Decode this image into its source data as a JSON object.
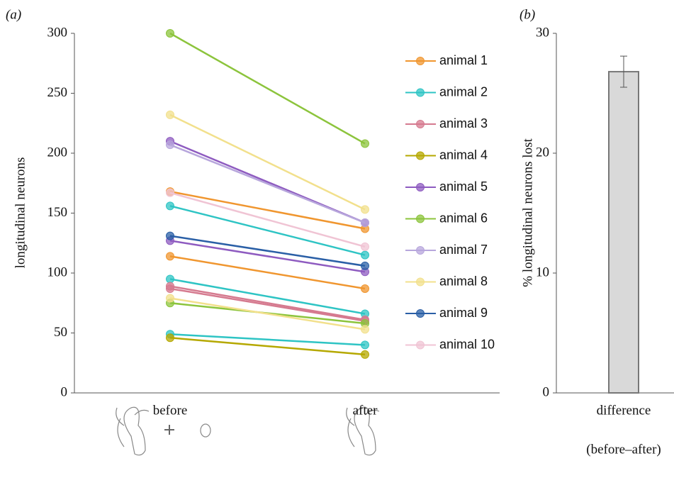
{
  "chart_data": [
    {
      "type": "line",
      "panel_label": "(a)",
      "ylabel": "longitudinal neurons",
      "categories": [
        "before",
        "after"
      ],
      "ylim": [
        0,
        300
      ],
      "yticks": [
        0,
        50,
        100,
        150,
        200,
        250,
        300
      ],
      "series": [
        {
          "name": "animal 1",
          "color": "#f0962f",
          "lines": [
            {
              "values": [
                168,
                137
              ]
            },
            {
              "values": [
                114,
                87
              ]
            }
          ]
        },
        {
          "name": "animal 2",
          "color": "#2ec4c4",
          "lines": [
            {
              "values": [
                156,
                115
              ]
            },
            {
              "values": [
                95,
                66
              ]
            },
            {
              "values": [
                49,
                40
              ]
            }
          ]
        },
        {
          "name": "animal 3",
          "color": "#d57a8f",
          "lines": [
            {
              "values": [
                89,
                61
              ]
            },
            {
              "values": [
                87,
                60
              ]
            }
          ]
        },
        {
          "name": "animal 4",
          "color": "#b5a800",
          "lines": [
            {
              "values": [
                46,
                32
              ]
            }
          ]
        },
        {
          "name": "animal 5",
          "color": "#8e5bc0",
          "lines": [
            {
              "values": [
                210,
                142
              ]
            },
            {
              "values": [
                127,
                101
              ]
            }
          ]
        },
        {
          "name": "animal 6",
          "color": "#8cc43c",
          "lines": [
            {
              "values": [
                300,
                208
              ]
            },
            {
              "values": [
                75,
                58
              ]
            }
          ]
        },
        {
          "name": "animal 7",
          "color": "#b7a6dc",
          "lines": [
            {
              "values": [
                207,
                142
              ]
            }
          ]
        },
        {
          "name": "animal 8",
          "color": "#f2e08c",
          "lines": [
            {
              "values": [
                232,
                153
              ]
            },
            {
              "values": [
                79,
                53
              ]
            }
          ]
        },
        {
          "name": "animal 9",
          "color": "#2a5fa6",
          "lines": [
            {
              "values": [
                131,
                106
              ]
            }
          ]
        },
        {
          "name": "animal 10",
          "color": "#f0c4d4",
          "lines": [
            {
              "values": [
                167,
                122
              ]
            }
          ]
        }
      ]
    },
    {
      "type": "bar",
      "panel_label": "(b)",
      "ylabel": "% longitudinal neurons lost",
      "categories": [
        "difference"
      ],
      "xlabel": "(before–after)",
      "values": [
        26.8
      ],
      "errors": [
        1.3
      ],
      "color": "#d9d9d9",
      "ylim": [
        0,
        30
      ],
      "yticks": [
        0,
        10,
        20,
        30
      ]
    }
  ]
}
